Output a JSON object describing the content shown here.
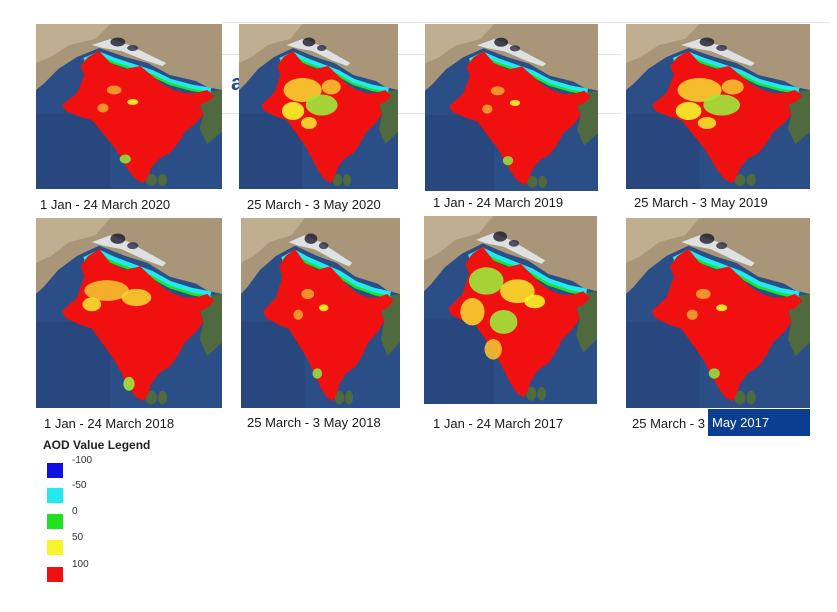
{
  "maps": [
    {
      "caption": "1 Jan - 24 March 2020",
      "pattern": "mostly-high"
    },
    {
      "caption": "25 March - 3 May 2020",
      "pattern": "central-mixed"
    },
    {
      "caption": "1 Jan - 24 March 2019",
      "pattern": "mostly-high"
    },
    {
      "caption": "25 March - 3 May 2019",
      "pattern": "central-mixed"
    },
    {
      "caption": "1 Jan - 24 March 2018",
      "pattern": "north-mixed"
    },
    {
      "caption": "25 March - 3 May 2018",
      "pattern": "mostly-high"
    },
    {
      "caption": "1 Jan - 24 March 2017",
      "pattern": "widespread-mixed"
    },
    {
      "caption": "25 March - 3",
      "caption_highlight": "May 2017",
      "pattern": "mostly-high"
    }
  ],
  "background_text": "a",
  "legend": {
    "title": "AOD Value Legend",
    "items": [
      {
        "label": "-100",
        "color": "#1010e0"
      },
      {
        "label": "-50",
        "color": "#22e8f0"
      },
      {
        "label": "0",
        "color": "#22e022"
      },
      {
        "label": "50",
        "color": "#f5f52a"
      },
      {
        "label": "100",
        "color": "#f01010"
      }
    ]
  }
}
